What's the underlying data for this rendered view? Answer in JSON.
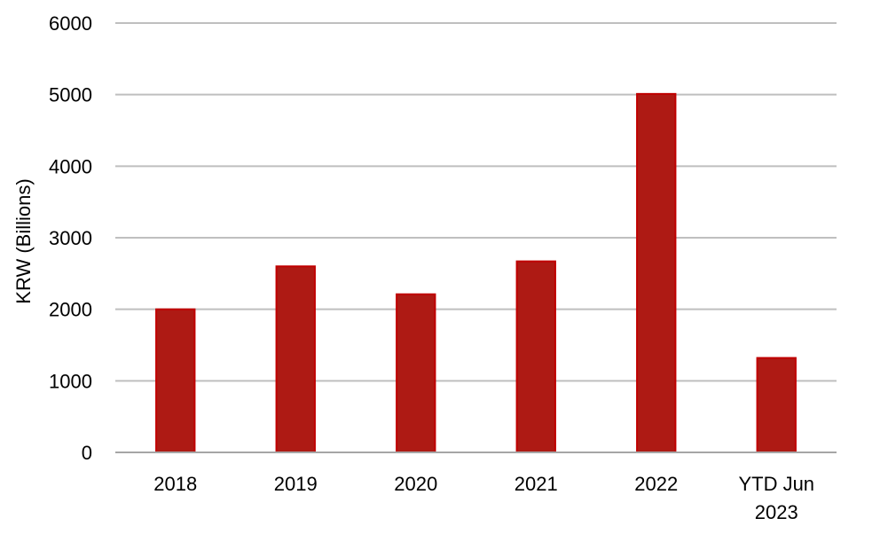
{
  "chart_data": {
    "type": "bar",
    "title": "",
    "xlabel": "",
    "ylabel": "KRW (Billions)",
    "categories": [
      [
        "2018"
      ],
      [
        "2019"
      ],
      [
        "2020"
      ],
      [
        "2021"
      ],
      [
        "2022"
      ],
      [
        "YTD Jun",
        "2023"
      ]
    ],
    "values": [
      2000,
      2600,
      2210,
      2670,
      5010,
      1320
    ],
    "ylim": [
      0,
      6000
    ],
    "yticks": [
      0,
      1000,
      2000,
      3000,
      4000,
      5000,
      6000
    ],
    "grid": true,
    "legend": "none",
    "colors": {
      "bar_fill": "#AE1A14",
      "bar_stroke": "#C00000",
      "grid": "#BFBFBF",
      "axis": "#A6A6A6"
    }
  }
}
